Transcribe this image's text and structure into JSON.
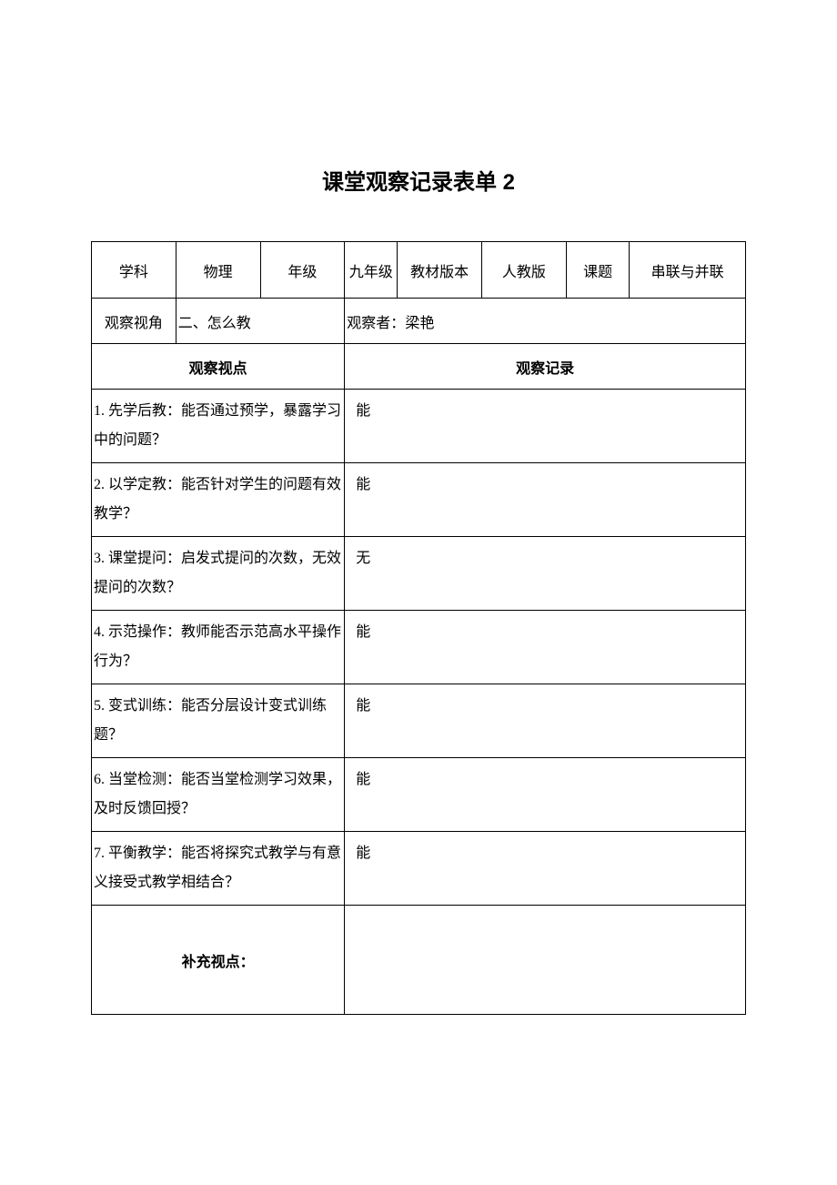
{
  "title": "课堂观察记录表单 2",
  "header": {
    "subject_label": "学科",
    "subject_value": "物理",
    "grade_label": "年级",
    "grade_value": "九年级",
    "textbook_label": "教材版本",
    "textbook_value": "人教版",
    "topic_label": "课题",
    "topic_value": "串联与并联"
  },
  "row2": {
    "angle_label": "观察视角",
    "angle_value": "二、怎么教",
    "observer_label": "观察者：",
    "observer_value": "梁艳"
  },
  "row3": {
    "viewpoint": "观察视点",
    "record": "观察记录"
  },
  "items": [
    {
      "q": "1. 先学后教：能否通过预学，暴露学习中的问题？",
      "a": "能"
    },
    {
      "q": "2. 以学定教：能否针对学生的问题有效教学？",
      "a": "能"
    },
    {
      "q": "3. 课堂提问：启发式提问的次数，无效提问的次数？",
      "a": "无"
    },
    {
      "q": "4. 示范操作：教师能否示范高水平操作行为？",
      "a": "能"
    },
    {
      "q": "5. 变式训练：能否分层设计变式训练题？",
      "a": "能"
    },
    {
      "q": "6. 当堂检测：能否当堂检测学习效果，及时反馈回授？",
      "a": "能"
    },
    {
      "q": "7. 平衡教学：能否将探究式教学与有意义接受式教学相结合？",
      "a": "能"
    }
  ],
  "supplement_label": "补充视点："
}
